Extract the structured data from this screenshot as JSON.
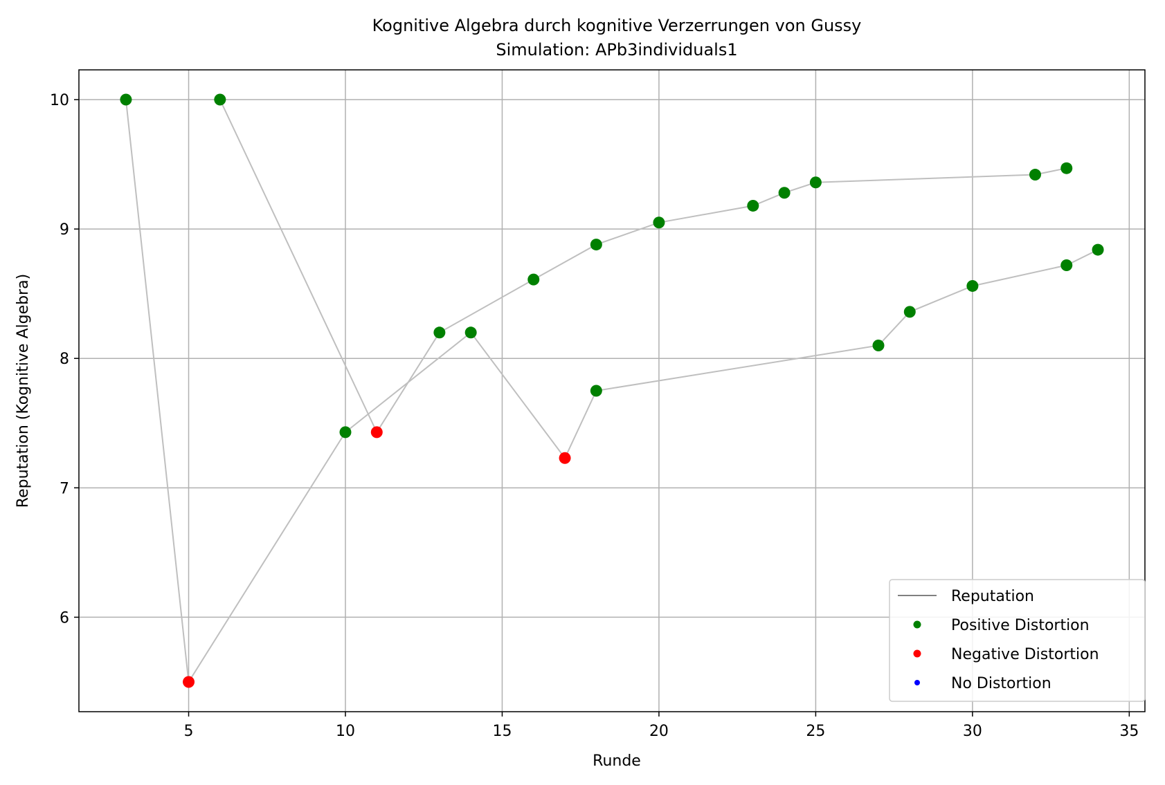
{
  "chart_data": {
    "type": "line",
    "title": "Kognitive Algebra durch kognitive Verzerrungen von Gussy",
    "subtitle": "Simulation: APb3individuals1",
    "xlabel": "Runde",
    "ylabel": "Reputation (Kognitive Algebra)",
    "xlim": [
      1.5,
      35.5
    ],
    "ylim": [
      5.27,
      10.23
    ],
    "x_ticks": [
      5,
      10,
      15,
      20,
      25,
      30,
      35
    ],
    "y_ticks": [
      6,
      7,
      8,
      9,
      10
    ],
    "grid": true,
    "legend_placement": "lower-right",
    "legend": [
      {
        "label": "Reputation",
        "kind": "line",
        "color": "#808080"
      },
      {
        "label": "Positive Distortion",
        "kind": "marker",
        "color": "#008000"
      },
      {
        "label": "Negative Distortion",
        "kind": "marker",
        "color": "#ff0000"
      },
      {
        "label": "No Distortion",
        "kind": "marker",
        "color": "#0000ff"
      }
    ],
    "series": [
      {
        "name": "Reputation",
        "points": [
          {
            "x": 3,
            "y": 10.0,
            "distortion": "positive"
          },
          {
            "x": 5,
            "y": 5.5,
            "distortion": "negative"
          },
          {
            "x": 10,
            "y": 7.43,
            "distortion": "positive"
          },
          {
            "x": 14,
            "y": 8.2,
            "distortion": "positive"
          },
          {
            "x": 17,
            "y": 7.23,
            "distortion": "negative"
          },
          {
            "x": 18,
            "y": 7.75,
            "distortion": "positive"
          },
          {
            "x": 27,
            "y": 8.1,
            "distortion": "positive"
          },
          {
            "x": 28,
            "y": 8.36,
            "distortion": "positive"
          },
          {
            "x": 30,
            "y": 8.56,
            "distortion": "positive"
          },
          {
            "x": 33,
            "y": 8.72,
            "distortion": "positive"
          },
          {
            "x": 34,
            "y": 8.84,
            "distortion": "positive"
          }
        ]
      },
      {
        "name": "Reputation",
        "points": [
          {
            "x": 6,
            "y": 10.0,
            "distortion": "positive"
          },
          {
            "x": 11,
            "y": 7.43,
            "distortion": "negative"
          },
          {
            "x": 13,
            "y": 8.2,
            "distortion": "positive"
          },
          {
            "x": 16,
            "y": 8.61,
            "distortion": "positive"
          },
          {
            "x": 18,
            "y": 8.88,
            "distortion": "positive"
          },
          {
            "x": 20,
            "y": 9.05,
            "distortion": "positive"
          },
          {
            "x": 23,
            "y": 9.18,
            "distortion": "positive"
          },
          {
            "x": 24,
            "y": 9.28,
            "distortion": "positive"
          },
          {
            "x": 25,
            "y": 9.36,
            "distortion": "positive"
          },
          {
            "x": 32,
            "y": 9.42,
            "distortion": "positive"
          },
          {
            "x": 33,
            "y": 9.47,
            "distortion": "positive"
          }
        ]
      }
    ],
    "colors": {
      "positive": "#008000",
      "negative": "#ff0000",
      "none": "#0000ff",
      "line": "#bfbfbf",
      "grid": "#b0b0b0"
    }
  }
}
